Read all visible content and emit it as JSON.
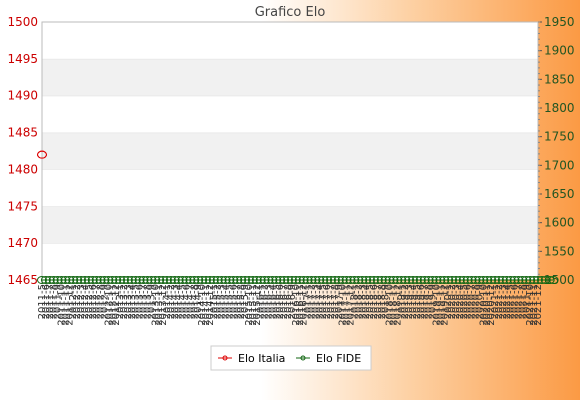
{
  "chart_data": {
    "type": "line",
    "title": "Grafico Elo",
    "xlabel": "",
    "y_left": {
      "label": "",
      "range": [
        1465,
        1500
      ],
      "ticks": [
        1465,
        1470,
        1475,
        1480,
        1485,
        1490,
        1495,
        1500
      ],
      "color": "#dd0000"
    },
    "y_right": {
      "label": "",
      "range": [
        1500,
        1950
      ],
      "ticks": [
        1500,
        1550,
        1600,
        1650,
        1700,
        1750,
        1800,
        1850,
        1900,
        1950
      ],
      "color": "#225522"
    },
    "x_tick_labels": [
      "2011-5",
      "2011-6",
      "2011-7",
      "2011-8",
      "2011-9",
      "2011-10",
      "2011-11",
      "2011-12",
      "2012-1",
      "2012-2",
      "2012-3",
      "2012-4",
      "2012-5",
      "2012-6",
      "2012-7",
      "2012-8",
      "2012-9",
      "2012-10",
      "2012-11",
      "2012-12",
      "2013-1",
      "2013-2",
      "2013-3",
      "2013-4",
      "2013-5",
      "2013-6",
      "2013-7",
      "2013-8",
      "2013-9",
      "2013-10",
      "2013-11",
      "2013-12",
      "2014-1",
      "2014-2",
      "2014-3",
      "2014-4",
      "2014-5",
      "2014-6",
      "2014-7",
      "2014-8",
      "2014-9",
      "2014-10",
      "2014-11",
      "2014-12",
      "2015-1",
      "2015-2",
      "2015-3",
      "2015-4",
      "2015-5",
      "2015-6",
      "2015-7",
      "2015-8",
      "2015-9",
      "2015-10",
      "2015-11",
      "2015-12",
      "2016-1",
      "2016-2",
      "2016-3",
      "2016-4",
      "2016-5",
      "2016-6",
      "2016-7",
      "2016-8",
      "2016-9",
      "2016-10",
      "2016-11",
      "2016-12",
      "2017-1",
      "2017-2",
      "2017-3",
      "2017-4",
      "2017-5",
      "2017-6",
      "2017-7",
      "2017-8",
      "2017-9",
      "2017-10",
      "2017-11",
      "2017-12",
      "2018-1",
      "2018-2",
      "2018-3",
      "2018-4",
      "2018-5",
      "2018-6",
      "2018-7",
      "2018-8",
      "2018-9",
      "2018-10",
      "2018-11",
      "2018-12",
      "2019-1",
      "2019-2",
      "2019-3",
      "2019-4",
      "2019-5",
      "2019-6",
      "2019-7",
      "2019-8",
      "2019-9",
      "2019-10",
      "2019-11",
      "2019-12",
      "2020-1",
      "2020-2",
      "2020-3",
      "2020-4",
      "2020-5",
      "2020-6",
      "2020-7",
      "2020-8",
      "2020-9",
      "2020-10",
      "2020-11",
      "2020-12",
      "2021-1",
      "2021-2",
      "2021-3",
      "2021-4",
      "2021-5",
      "2021-6",
      "2021-7",
      "2021-8",
      "2021-9",
      "2021-10",
      "2021-11",
      "2021-12"
    ],
    "series": [
      {
        "name": "Elo Italia",
        "axis": "left",
        "color": "#dd0000",
        "values": [
          1482,
          1482
        ]
      },
      {
        "name": "Elo FIDE",
        "axis": "right",
        "color": "#116611",
        "values": [
          1500,
          1500,
          1500,
          1500,
          1500,
          1500,
          1500,
          1500,
          1500,
          1500,
          1500,
          1500,
          1500,
          1500,
          1500,
          1500,
          1500,
          1500,
          1500,
          1500,
          1500,
          1500,
          1500,
          1500,
          1500,
          1500,
          1500,
          1500,
          1500,
          1500,
          1500,
          1500,
          1500,
          1500,
          1500,
          1500,
          1500,
          1500,
          1500,
          1500,
          1500,
          1500,
          1500,
          1500,
          1500,
          1500,
          1500,
          1500,
          1500,
          1500,
          1500,
          1500,
          1500,
          1500,
          1500,
          1500,
          1500,
          1500,
          1500,
          1500,
          1500,
          1500,
          1500,
          1500,
          1500,
          1500,
          1500,
          1500,
          1500,
          1500,
          1500,
          1500,
          1500,
          1500,
          1500,
          1500,
          1500,
          1500,
          1500,
          1500,
          1500,
          1500,
          1500,
          1500,
          1500,
          1500,
          1500,
          1500,
          1500,
          1500,
          1500,
          1500,
          1500,
          1500,
          1500,
          1500,
          1500,
          1500,
          1500,
          1500,
          1500,
          1500,
          1500,
          1500,
          1500,
          1500,
          1500,
          1500,
          1500,
          1500,
          1500,
          1500,
          1500,
          1500,
          1500,
          1500,
          1500,
          1500,
          1500,
          1500,
          1500,
          1500,
          1500,
          1500,
          1500,
          1500,
          1500,
          1500,
          1500,
          1500,
          1500,
          1500
        ]
      }
    ],
    "legend": {
      "position": "bottom-center"
    },
    "grid": "horizontal bands"
  }
}
